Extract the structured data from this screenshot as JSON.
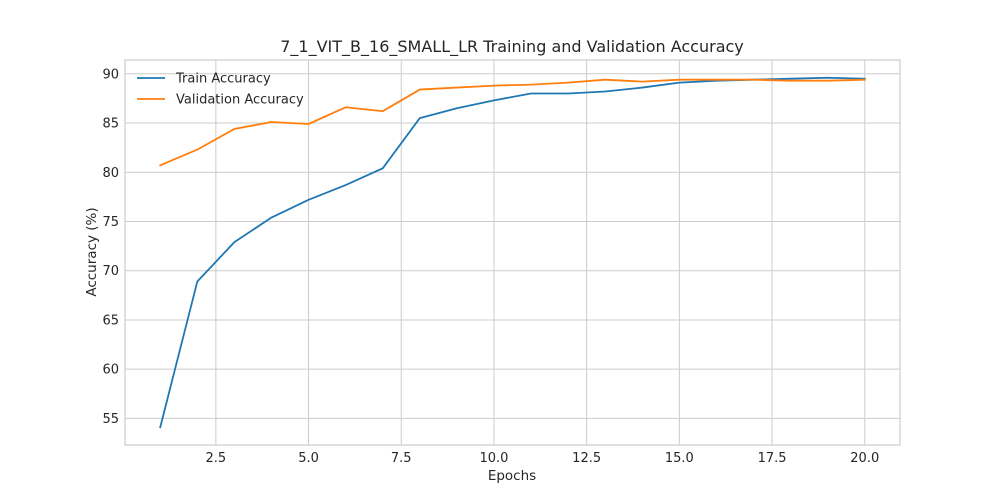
{
  "chart_data": {
    "type": "line",
    "title": "7_1_VIT_B_16_SMALL_LR Training and Validation Accuracy",
    "xlabel": "Epochs",
    "ylabel": "Accuracy (%)",
    "x": [
      1,
      2,
      3,
      4,
      5,
      6,
      7,
      8,
      9,
      10,
      11,
      12,
      13,
      14,
      15,
      16,
      17,
      18,
      19,
      20
    ],
    "xlim": [
      0.05,
      20.95
    ],
    "ylim": [
      52.3,
      91.4
    ],
    "xticks": [
      2.5,
      5.0,
      7.5,
      10.0,
      12.5,
      15.0,
      17.5,
      20.0
    ],
    "xtick_labels": [
      "2.5",
      "5.0",
      "7.5",
      "10.0",
      "12.5",
      "15.0",
      "17.5",
      "20.0"
    ],
    "yticks": [
      55,
      60,
      65,
      70,
      75,
      80,
      85,
      90
    ],
    "ytick_labels": [
      "55",
      "60",
      "65",
      "70",
      "75",
      "80",
      "85",
      "90"
    ],
    "grid": true,
    "legend_position": "top-left",
    "series": [
      {
        "name": "Train Accuracy",
        "color": "#1f77b4",
        "values": [
          54.1,
          68.9,
          72.9,
          75.4,
          77.2,
          78.7,
          80.4,
          85.5,
          86.5,
          87.3,
          88.0,
          88.0,
          88.2,
          88.6,
          89.1,
          89.3,
          89.4,
          89.5,
          89.6,
          89.5
        ]
      },
      {
        "name": "Validation Accuracy",
        "color": "#ff7f0e",
        "values": [
          80.7,
          82.3,
          84.4,
          85.1,
          84.9,
          86.6,
          86.2,
          88.4,
          88.6,
          88.8,
          88.9,
          89.1,
          89.4,
          89.2,
          89.4,
          89.4,
          89.4,
          89.3,
          89.3,
          89.4
        ]
      }
    ]
  }
}
